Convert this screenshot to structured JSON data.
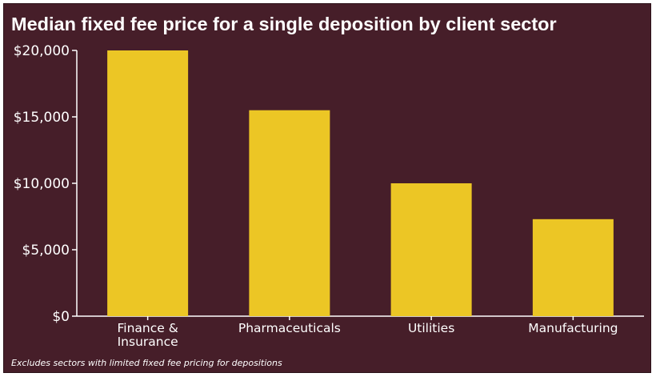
{
  "chart_data": {
    "type": "bar",
    "title": "Median fixed fee price for a single deposition by client sector",
    "xlabel": "",
    "ylabel": "",
    "categories": [
      "Finance & Insurance",
      "Pharmaceuticals",
      "Utilities",
      "Manufacturing"
    ],
    "category_lines": [
      [
        "Finance &",
        "Insurance"
      ],
      [
        "Pharmaceuticals"
      ],
      [
        "Utilities"
      ],
      [
        "Manufacturing"
      ]
    ],
    "values": [
      20000,
      15500,
      10000,
      7300
    ],
    "ylim": [
      0,
      20000
    ],
    "yticks": [
      0,
      5000,
      10000,
      15000,
      20000
    ],
    "ytick_labels": [
      "$0",
      "$5,000",
      "$10,000",
      "$15,000",
      "$20,000"
    ],
    "grid": false,
    "legend": "none",
    "note": "Excludes sectors with limited fixed fee pricing for depositions"
  },
  "colors": {
    "background": "#461e29",
    "bar": "#ecc625",
    "text": "#ffffff",
    "axis": "#ffffff"
  }
}
